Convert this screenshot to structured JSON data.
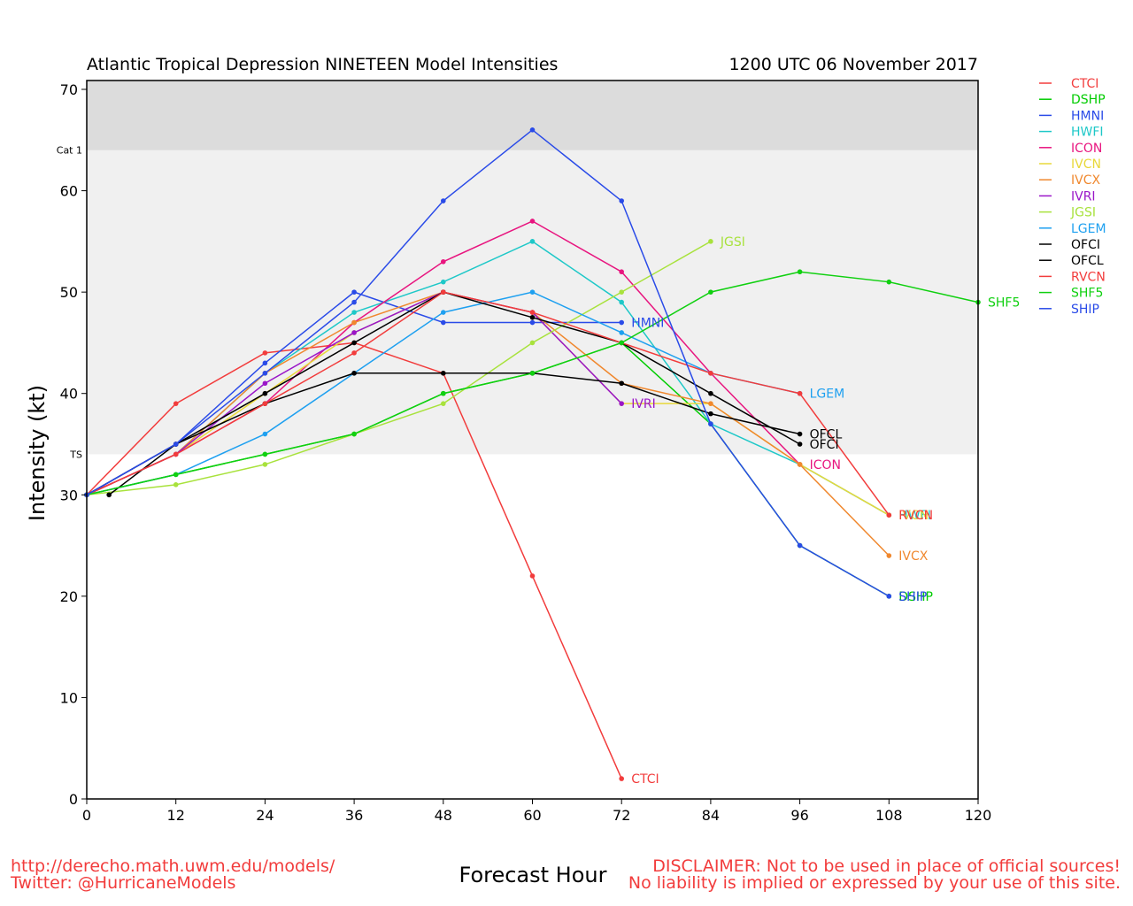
{
  "chart_data": {
    "type": "line",
    "title": "Atlantic Tropical Depression NINETEEN Model Intensities",
    "subtitle": "1200 UTC 06 November 2017",
    "xlabel": "Forecast Hour",
    "ylabel": "Intensity (kt)",
    "xlim": [
      0,
      120
    ],
    "ylim": [
      0,
      70
    ],
    "xticks": [
      0,
      12,
      24,
      36,
      48,
      60,
      72,
      84,
      96,
      108,
      120
    ],
    "yticks": [
      0,
      10,
      20,
      30,
      40,
      50,
      60,
      70
    ],
    "grid": false,
    "legend_position": "right-outside",
    "bands": [
      {
        "label": "TS",
        "from": 34,
        "to": 64,
        "color": "#f0f0f0"
      },
      {
        "label": "Cat 1",
        "from": 64,
        "to": 70,
        "color": "#dcdcdc"
      }
    ],
    "series": [
      {
        "name": "CTCI",
        "color": "#f23c3c",
        "x": [
          0,
          12,
          24,
          36,
          48,
          60,
          72
        ],
        "y": [
          30,
          39,
          44,
          45,
          42,
          22,
          2
        ]
      },
      {
        "name": "DSHP",
        "color": "#00cc00",
        "x": [
          0,
          12,
          24,
          36,
          48,
          60,
          72,
          84,
          96,
          108
        ],
        "y": [
          30,
          32,
          34,
          36,
          40,
          42,
          45,
          37,
          25,
          20
        ]
      },
      {
        "name": "HMNI",
        "color": "#2a4be8",
        "x": [
          0,
          12,
          24,
          36,
          48,
          60,
          72
        ],
        "y": [
          30,
          35,
          43,
          50,
          47,
          47,
          47
        ]
      },
      {
        "name": "HWFI",
        "color": "#1ec8c8",
        "x": [
          0,
          12,
          24,
          36,
          48,
          60,
          72,
          84,
          96,
          108
        ],
        "y": [
          30,
          34,
          42,
          48,
          51,
          55,
          49,
          37,
          33,
          28
        ]
      },
      {
        "name": "ICON",
        "color": "#e8157f",
        "x": [
          0,
          12,
          24,
          36,
          48,
          60,
          72,
          84,
          96
        ],
        "y": [
          30,
          34,
          39,
          47,
          53,
          57,
          52,
          42,
          33
        ]
      },
      {
        "name": "IVCN",
        "color": "#e8d83a",
        "x": [
          0,
          12,
          24,
          36,
          48,
          60,
          72,
          84,
          96,
          108
        ],
        "y": [
          30,
          34,
          40,
          46,
          50,
          48,
          39,
          39,
          33,
          28
        ]
      },
      {
        "name": "IVCX",
        "color": "#f0882e",
        "x": [
          0,
          12,
          24,
          36,
          48,
          60,
          72,
          84,
          96,
          108
        ],
        "y": [
          30,
          34,
          42,
          47,
          50,
          48,
          41,
          39,
          33,
          24
        ]
      },
      {
        "name": "IVRI",
        "color": "#9a16c8",
        "x": [
          0,
          12,
          24,
          36,
          48,
          60,
          72
        ],
        "y": [
          30,
          34,
          41,
          46,
          50,
          48,
          39
        ]
      },
      {
        "name": "JGSI",
        "color": "#a8e23c",
        "x": [
          0,
          12,
          24,
          36,
          48,
          60,
          72,
          84
        ],
        "y": [
          30,
          31,
          33,
          36,
          39,
          45,
          50,
          55
        ]
      },
      {
        "name": "LGEM",
        "color": "#1ea0f0",
        "x": [
          0,
          12,
          24,
          36,
          48,
          60,
          72,
          84,
          96
        ],
        "y": [
          30,
          32,
          36,
          42,
          48,
          50,
          46,
          42,
          40
        ]
      },
      {
        "name": "OFCI",
        "color": "#000000",
        "x": [
          3,
          12,
          24,
          36,
          48,
          60,
          72,
          84,
          96
        ],
        "y": [
          30,
          35,
          40,
          45,
          50,
          47.5,
          45,
          40,
          35
        ]
      },
      {
        "name": "OFCL",
        "color": "#000000",
        "x": [
          0,
          12,
          24,
          36,
          48,
          60,
          72,
          84,
          96
        ],
        "y": [
          30,
          35,
          39,
          42,
          42,
          42,
          41,
          38,
          36
        ]
      },
      {
        "name": "RVCN",
        "color": "#f23c3c",
        "x": [
          0,
          12,
          24,
          36,
          48,
          60,
          72,
          84,
          96,
          108
        ],
        "y": [
          30,
          34,
          39,
          44,
          50,
          48,
          45,
          42,
          40,
          28
        ]
      },
      {
        "name": "SHF5",
        "color": "#10d010",
        "x": [
          0,
          12,
          24,
          36,
          48,
          60,
          72,
          84,
          96,
          108,
          120
        ],
        "y": [
          30,
          32,
          34,
          36,
          40,
          42,
          45,
          50,
          52,
          51,
          49
        ]
      },
      {
        "name": "SHIP",
        "color": "#2a4be8",
        "x": [
          0,
          12,
          24,
          36,
          48,
          60,
          72,
          84,
          96,
          108
        ],
        "y": [
          30,
          35,
          42,
          49,
          59,
          66,
          59,
          37,
          25,
          20
        ]
      }
    ],
    "end_labels": [
      {
        "text": "CTCI",
        "series": "CTCI"
      },
      {
        "text": "DSHP",
        "series": "DSHP"
      },
      {
        "text": "HMNI",
        "series": "HMNI"
      },
      {
        "text": "HWFI",
        "series": "HWFI"
      },
      {
        "text": "ICON",
        "series": "ICON"
      },
      {
        "text": "IVCN",
        "series": "IVCN"
      },
      {
        "text": "IVCX",
        "series": "IVCX"
      },
      {
        "text": "IVRI",
        "series": "IVRI"
      },
      {
        "text": "JGSI",
        "series": "JGSI"
      },
      {
        "text": "LGEM",
        "series": "LGEM"
      },
      {
        "text": "OFCI",
        "series": "OFCI"
      },
      {
        "text": "OFCL",
        "series": "OFCL"
      },
      {
        "text": "RVCN",
        "series": "RVCN"
      },
      {
        "text": "SHF5",
        "series": "SHF5"
      },
      {
        "text": "SHIP",
        "series": "SHIP"
      }
    ]
  },
  "footer": {
    "url": "http://derecho.math.uwm.edu/models/",
    "twitter": "Twitter: @HurricaneModels",
    "disclaimer_line1": "DISCLAIMER: Not to be used in place of official sources!",
    "disclaimer_line2": "No liability is implied or expressed by your use of this site."
  }
}
